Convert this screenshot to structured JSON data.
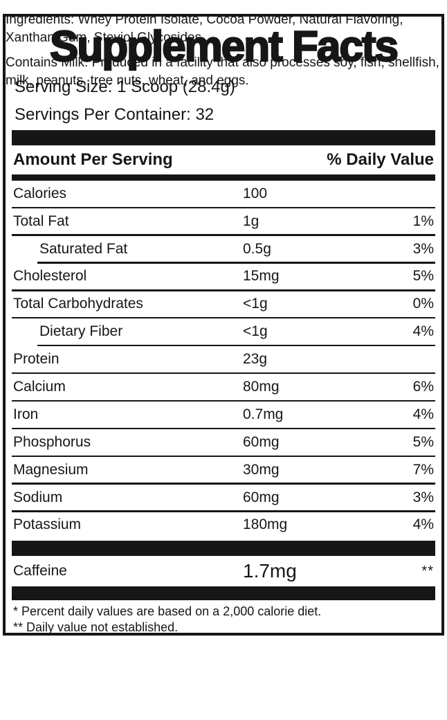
{
  "panel": {
    "title": "Supplement Facts",
    "serving_size": "Serving Size: 1 Scoop (28.4g)",
    "servings_per_container": "Servings Per Container: 32",
    "header": {
      "amount_per_serving": "Amount Per Serving",
      "daily_value": "% Daily Value"
    },
    "rows": [
      {
        "name": "Calories",
        "amount": "100",
        "dv": "",
        "indent": false
      },
      {
        "name": "Total Fat",
        "amount": "1g",
        "dv": "1%",
        "indent": false
      },
      {
        "name": "Saturated Fat",
        "amount": "0.5g",
        "dv": "3%",
        "indent": true
      },
      {
        "name": "Cholesterol",
        "amount": "15mg",
        "dv": "5%",
        "indent": false
      },
      {
        "name": "Total Carbohydrates",
        "amount": "<1g",
        "dv": "0%",
        "indent": false
      },
      {
        "name": "Dietary Fiber",
        "amount": "<1g",
        "dv": "4%",
        "indent": true
      },
      {
        "name": "Protein",
        "amount": "23g",
        "dv": "",
        "indent": false
      },
      {
        "name": "Calcium",
        "amount": "80mg",
        "dv": "6%",
        "indent": false
      },
      {
        "name": "Iron",
        "amount": "0.7mg",
        "dv": "4%",
        "indent": false
      },
      {
        "name": "Phosphorus",
        "amount": "60mg",
        "dv": "5%",
        "indent": false
      },
      {
        "name": "Magnesium",
        "amount": "30mg",
        "dv": "7%",
        "indent": false
      },
      {
        "name": "Sodium",
        "amount": "60mg",
        "dv": "3%",
        "indent": false
      },
      {
        "name": "Potassium",
        "amount": "180mg",
        "dv": "4%",
        "indent": false
      }
    ],
    "caffeine_row": {
      "name": "Caffeine",
      "amount": "1.7mg",
      "dv": "**"
    },
    "footnotes": [
      "* Percent daily values are based on a 2,000 calorie diet.",
      "** Daily value not established."
    ]
  },
  "below_panel": {
    "ingredients_lines": [
      "Ingredients: Whey Protein Isolate, Cocoa Powder, Natural Flavoring,",
      "Xanthan Gum, Steviol Glycosides"
    ],
    "allergen_lines": [
      "Contains Milk. Produced in a facility that also processes soy, fish, shellfish,",
      "milk, peanuts, tree nuts, wheat, and eggs."
    ]
  },
  "colors": {
    "ink": "#161616",
    "background": "#ffffff"
  }
}
